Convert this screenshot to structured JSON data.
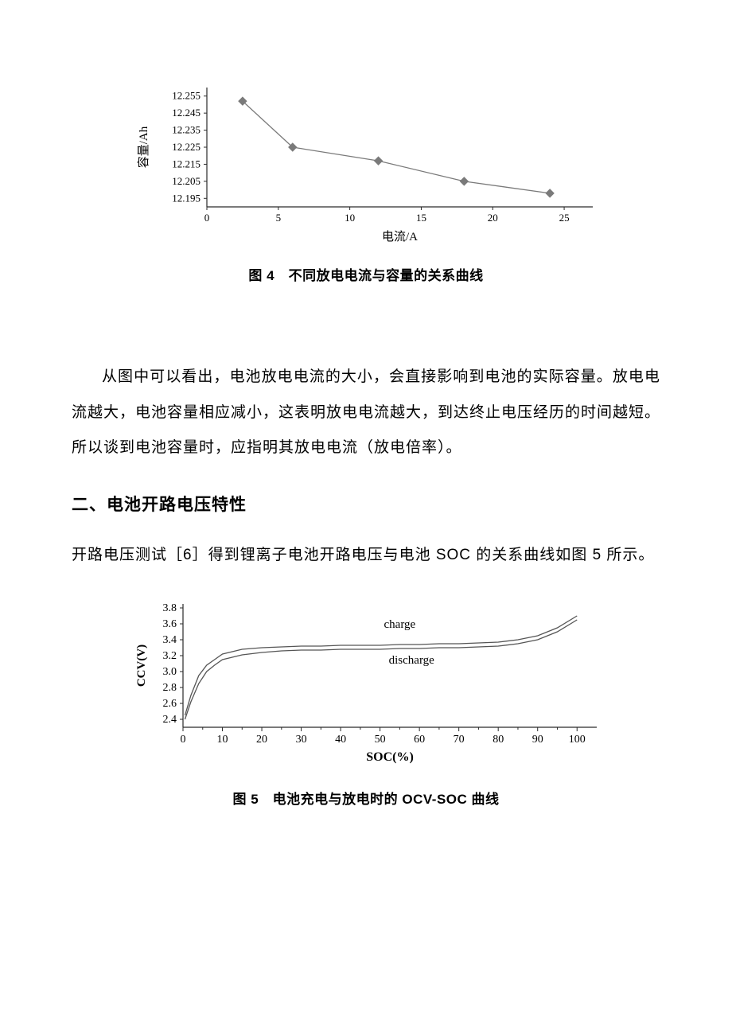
{
  "chart1": {
    "type": "line",
    "xlabel": "电流/A",
    "ylabel": "容量/Ah",
    "xlim": [
      0,
      27
    ],
    "ylim": [
      12.19,
      12.26
    ],
    "xtick_labels": [
      "0",
      "5",
      "10",
      "15",
      "20",
      "25"
    ],
    "xtick_positions": [
      0,
      5,
      10,
      15,
      20,
      25
    ],
    "ytick_labels": [
      "12.195",
      "12.205",
      "12.215",
      "12.225",
      "12.235",
      "12.245",
      "12.255"
    ],
    "ytick_positions": [
      12.195,
      12.205,
      12.215,
      12.225,
      12.235,
      12.245,
      12.255
    ],
    "x_values": [
      2.5,
      6,
      12,
      18,
      24
    ],
    "y_values": [
      12.252,
      12.225,
      12.217,
      12.205,
      12.198
    ],
    "line_color": "#7a7a7a",
    "marker_color": "#7a7a7a",
    "axis_color": "#2a2a2a",
    "text_color": "#000000",
    "background_color": "#ffffff",
    "line_width": 1.3,
    "marker_style": "diamond",
    "marker_size": 5,
    "label_fontsize": 15,
    "tick_fontsize": 13
  },
  "caption1": "图 4　不同放电电流与容量的关系曲线",
  "paragraph1": "从图中可以看出，电池放电电流的大小，会直接影响到电池的实际容量。放电电流越大，电池容量相应减小，这表明放电电流越大，到达终止电压经历的时间越短。所以谈到电池容量时，应指明其放电电流（放电倍率）。",
  "heading2": "二、电池开路电压特性",
  "paragraph2": "开路电压测试［6］得到锂离子电池开路电压与电池 SOC 的关系曲线如图 5 所示。",
  "chart2": {
    "type": "line",
    "xlabel": "SOC(%)",
    "ylabel": "CCV(V)",
    "xlim": [
      0,
      105
    ],
    "ylim": [
      2.3,
      3.85
    ],
    "xtick_labels": [
      "0",
      "10",
      "20",
      "30",
      "40",
      "50",
      "60",
      "70",
      "80",
      "90",
      "100"
    ],
    "xtick_positions": [
      0,
      10,
      20,
      30,
      40,
      50,
      60,
      70,
      80,
      90,
      100
    ],
    "ytick_labels": [
      "2.4",
      "2.6",
      "2.8",
      "3.0",
      "3.2",
      "3.4",
      "3.6",
      "3.8"
    ],
    "ytick_positions": [
      2.4,
      2.6,
      2.8,
      3.0,
      3.2,
      3.4,
      3.6,
      3.8
    ],
    "series": [
      {
        "name": "charge",
        "label_text": "charge",
        "label_x": 55,
        "label_y": 3.55,
        "x": [
          0.5,
          2,
          4,
          6,
          8,
          10,
          15,
          20,
          25,
          30,
          35,
          40,
          45,
          50,
          55,
          60,
          65,
          70,
          75,
          80,
          85,
          90,
          95,
          100
        ],
        "y": [
          2.45,
          2.7,
          2.95,
          3.08,
          3.15,
          3.22,
          3.28,
          3.3,
          3.31,
          3.32,
          3.32,
          3.33,
          3.33,
          3.33,
          3.34,
          3.34,
          3.35,
          3.35,
          3.36,
          3.37,
          3.4,
          3.45,
          3.55,
          3.7
        ]
      },
      {
        "name": "discharge",
        "label_text": "discharge",
        "label_x": 58,
        "label_y": 3.1,
        "x": [
          0.5,
          2,
          4,
          6,
          8,
          10,
          15,
          20,
          25,
          30,
          35,
          40,
          45,
          50,
          55,
          60,
          65,
          70,
          75,
          80,
          85,
          90,
          95,
          100
        ],
        "y": [
          2.4,
          2.62,
          2.85,
          3.0,
          3.08,
          3.15,
          3.21,
          3.24,
          3.26,
          3.27,
          3.27,
          3.28,
          3.28,
          3.28,
          3.29,
          3.29,
          3.3,
          3.3,
          3.31,
          3.32,
          3.35,
          3.4,
          3.5,
          3.65
        ]
      }
    ],
    "line_color": "#555555",
    "axis_color": "#2a2a2a",
    "text_color": "#000000",
    "background_color": "#ffffff",
    "line_width": 1.3,
    "label_fontsize": 15,
    "tick_fontsize": 14,
    "series_label_fontsize": 15
  },
  "caption2": "图 5　电池充电与放电时的 OCV-SOC 曲线"
}
